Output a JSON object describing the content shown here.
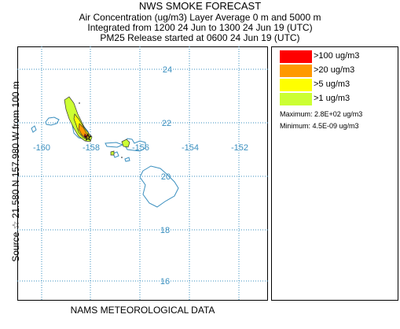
{
  "header": {
    "title": "NWS SMOKE FORECAST",
    "subtitle_1": "Air Concentration (ug/m3) Layer Average    0 m and  5000 m",
    "subtitle_2": "Integrated from 1200 24 Jun to 1300 24 Jun 19 (UTC)",
    "subtitle_3": "PM25 Release started at 0600 24 Jun 19 (UTC)"
  },
  "side_label": "Source ☆  21.580  N 157.980  W    from  100 m",
  "map": {
    "lat_labels": [
      "24",
      "22",
      "20",
      "18",
      "16"
    ],
    "lon_labels": [
      "-160",
      "-158",
      "-156",
      "-154",
      "-152"
    ],
    "grid_color": "#3a8fbf",
    "coast_color": "#3a8fbf",
    "source_marker": "source-star",
    "source_lat": 21.58,
    "source_lon": -157.98
  },
  "legend": {
    "items": [
      {
        "label": ">100 ug/m3",
        "color": "#ff0000"
      },
      {
        "label": ">20 ug/m3",
        "color": "#ff9900"
      },
      {
        "label": ">5 ug/m3",
        "color": "#ffff00"
      },
      {
        "label": ">1 ug/m3",
        "color": "#ccff33"
      }
    ],
    "maximum": "Maximum: 2.8E+02 ug/m3",
    "minimum": "Minimum: 4.5E-09 ug/m3"
  },
  "footer": "NAMS METEOROLOGICAL DATA"
}
